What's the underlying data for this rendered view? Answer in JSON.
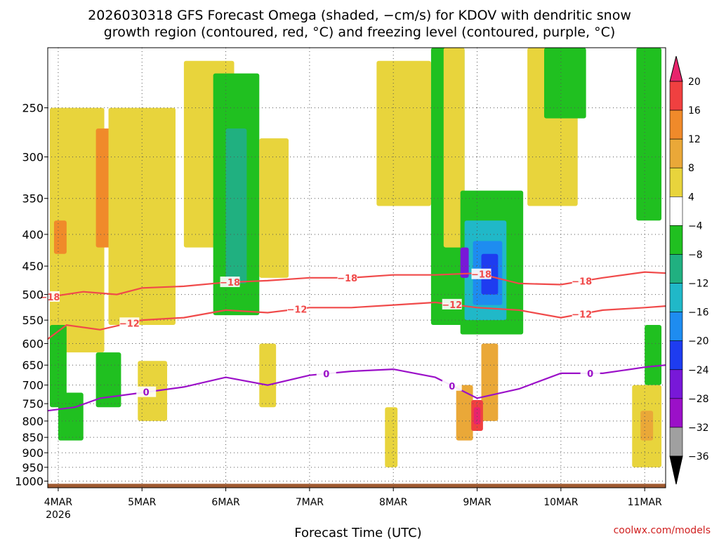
{
  "chart_data": {
    "type": "heatmap",
    "title": [
      "2026030318 GFS Forecast Omega (shaded, −cm/s) for KDOV with dendritic snow",
      "growth region (contoured, red, °C) and freezing level (contoured, purple, °C)"
    ],
    "xlabel": "Forecast Time (UTC)",
    "ylabel": "",
    "x_tick_labels": [
      "4MAR",
      "5MAR",
      "6MAR",
      "7MAR",
      "8MAR",
      "9MAR",
      "10MAR",
      "11MAR"
    ],
    "x_year_label": "2026",
    "x_range_days": [
      -0.125,
      7.25
    ],
    "y_tick_labels": [
      "250",
      "300",
      "350",
      "400",
      "450",
      "500",
      "550",
      "600",
      "650",
      "700",
      "750",
      "800",
      "850",
      "900",
      "950",
      "1000"
    ],
    "y_range_hpa": [
      200,
      1025
    ],
    "y_scale": "log",
    "grid": true,
    "colorbar": {
      "labels": [
        "20",
        "16",
        "12",
        "8",
        "4",
        "−4",
        "−8",
        "−12",
        "−16",
        "−20",
        "−24",
        "−28",
        "−32",
        "−36"
      ],
      "colors": [
        "#e8246c",
        "#f04040",
        "#f08a2a",
        "#eaa838",
        "#e8d43c",
        "#ffffff",
        "#20c020",
        "#20b080",
        "#20b8c8",
        "#1e8cf0",
        "#1e3cf0",
        "#7818d8",
        "#9b10c8",
        "#a0a0a0",
        "#000000"
      ]
    },
    "shaded_regions": [
      {
        "color": "#e8d43c",
        "t0": -0.1,
        "t1": 0.55,
        "p0": 250,
        "p1": 620
      },
      {
        "color": "#f08a2a",
        "t0": 0.45,
        "t1": 0.75,
        "p0": 270,
        "p1": 420
      },
      {
        "color": "#e8d43c",
        "t0": 0.6,
        "t1": 1.4,
        "p0": 250,
        "p1": 560
      },
      {
        "color": "#f08a2a",
        "t0": -0.05,
        "t1": 0.1,
        "p0": 380,
        "p1": 430
      },
      {
        "color": "#e8d43c",
        "t0": 1.5,
        "t1": 2.1,
        "p0": 210,
        "p1": 420
      },
      {
        "color": "#20c020",
        "t0": 1.85,
        "t1": 2.4,
        "p0": 220,
        "p1": 540
      },
      {
        "color": "#20b080",
        "t0": 2.0,
        "t1": 2.25,
        "p0": 270,
        "p1": 480
      },
      {
        "color": "#e8d43c",
        "t0": 2.4,
        "t1": 2.75,
        "p0": 280,
        "p1": 470
      },
      {
        "color": "#20c020",
        "t0": -0.1,
        "t1": 0.1,
        "p0": 560,
        "p1": 760
      },
      {
        "color": "#20c020",
        "t0": 0.0,
        "t1": 0.3,
        "p0": 720,
        "p1": 860
      },
      {
        "color": "#20c020",
        "t0": 0.45,
        "t1": 0.75,
        "p0": 620,
        "p1": 760
      },
      {
        "color": "#e8d43c",
        "t0": 0.95,
        "t1": 1.3,
        "p0": 640,
        "p1": 800
      },
      {
        "color": "#e8d43c",
        "t0": 3.8,
        "t1": 4.45,
        "p0": 210,
        "p1": 360
      },
      {
        "color": "#20c020",
        "t0": 4.45,
        "t1": 4.85,
        "p0": 200,
        "p1": 560
      },
      {
        "color": "#e8d43c",
        "t0": 4.6,
        "t1": 4.85,
        "p0": 200,
        "p1": 420
      },
      {
        "color": "#20c020",
        "t0": 4.8,
        "t1": 5.55,
        "p0": 340,
        "p1": 580
      },
      {
        "color": "#20b8c8",
        "t0": 4.85,
        "t1": 5.35,
        "p0": 380,
        "p1": 550
      },
      {
        "color": "#1e8cf0",
        "t0": 4.95,
        "t1": 5.3,
        "p0": 410,
        "p1": 520
      },
      {
        "color": "#1e3cf0",
        "t0": 5.05,
        "t1": 5.25,
        "p0": 430,
        "p1": 500
      },
      {
        "color": "#7818d8",
        "t0": 4.8,
        "t1": 4.9,
        "p0": 420,
        "p1": 470
      },
      {
        "color": "#e8d43c",
        "t0": 5.6,
        "t1": 6.2,
        "p0": 200,
        "p1": 360
      },
      {
        "color": "#20c020",
        "t0": 5.8,
        "t1": 6.3,
        "p0": 200,
        "p1": 260
      },
      {
        "color": "#20c020",
        "t0": 6.9,
        "t1": 7.2,
        "p0": 200,
        "p1": 380
      },
      {
        "color": "#eaa838",
        "t0": 4.75,
        "t1": 4.95,
        "p0": 700,
        "p1": 860
      },
      {
        "color": "#eaa838",
        "t0": 5.05,
        "t1": 5.25,
        "p0": 600,
        "p1": 800
      },
      {
        "color": "#f04040",
        "t0": 4.93,
        "t1": 5.07,
        "p0": 740,
        "p1": 830
      },
      {
        "color": "#e8246c",
        "t0": 4.96,
        "t1": 5.04,
        "p0": 760,
        "p1": 810
      },
      {
        "color": "#e8d43c",
        "t0": 6.85,
        "t1": 7.2,
        "p0": 700,
        "p1": 950
      },
      {
        "color": "#eaa838",
        "t0": 6.95,
        "t1": 7.1,
        "p0": 770,
        "p1": 860
      },
      {
        "color": "#20c020",
        "t0": 7.0,
        "t1": 7.2,
        "p0": 560,
        "p1": 700
      },
      {
        "color": "#e8d43c",
        "t0": 3.9,
        "t1": 4.05,
        "p0": 760,
        "p1": 950
      },
      {
        "color": "#e8d43c",
        "t0": 2.4,
        "t1": 2.6,
        "p0": 600,
        "p1": 760
      }
    ],
    "contours": [
      {
        "label": "−18",
        "color": "#f04a4a",
        "t": [
          -0.125,
          0.3,
          0.7,
          1.0,
          1.5,
          2.0,
          2.5,
          3.0,
          3.5,
          4.0,
          4.5,
          5.0,
          5.5,
          6.0,
          6.5,
          7.0,
          7.25
        ],
        "p": [
          505,
          495,
          500,
          488,
          485,
          478,
          475,
          470,
          470,
          465,
          465,
          462,
          480,
          482,
          470,
          460,
          462
        ]
      },
      {
        "label": "−12",
        "color": "#f04a4a",
        "t": [
          -0.125,
          0.1,
          0.5,
          1.0,
          1.5,
          2.0,
          2.5,
          3.0,
          3.5,
          4.0,
          4.5,
          5.0,
          5.5,
          6.0,
          6.5,
          7.0,
          7.25
        ],
        "p": [
          590,
          560,
          570,
          550,
          545,
          530,
          535,
          525,
          525,
          520,
          515,
          525,
          530,
          545,
          530,
          525,
          522
        ]
      },
      {
        "label": "0",
        "color": "#9b10c8",
        "t": [
          -0.125,
          0.2,
          0.5,
          1.0,
          1.5,
          2.0,
          2.5,
          3.0,
          3.5,
          4.0,
          4.5,
          5.0,
          5.5,
          6.0,
          6.5,
          7.0,
          7.25
        ],
        "p": [
          770,
          760,
          735,
          720,
          705,
          680,
          700,
          675,
          665,
          660,
          680,
          735,
          710,
          670,
          670,
          655,
          650
        ]
      }
    ],
    "contour_label_positions": [
      {
        "contour": 0,
        "t": [
          -0.1,
          2.05,
          3.45,
          5.05,
          6.25
        ]
      },
      {
        "contour": 1,
        "t": [
          0.85,
          2.85,
          4.7,
          6.25
        ]
      },
      {
        "contour": 2,
        "t": [
          1.05,
          3.2,
          4.7,
          6.35
        ]
      }
    ],
    "ground": {
      "color": "#a05a30",
      "p0": 1010,
      "p1": 1025
    }
  },
  "credit": "coolwx.com/models"
}
